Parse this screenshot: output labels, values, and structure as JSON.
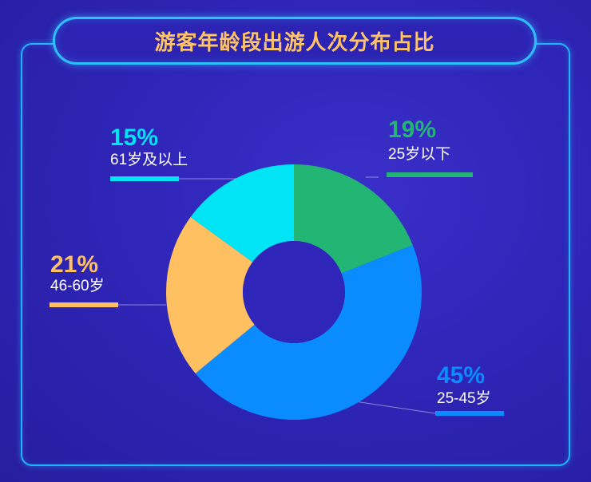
{
  "title": "游客年龄段出游人次分布占比",
  "chart_data": {
    "type": "pie",
    "style": "donut",
    "slices": [
      {
        "label": "25岁以下",
        "value": 19,
        "display": "19%",
        "color": "#22b573"
      },
      {
        "label": "25-45岁",
        "value": 45,
        "display": "45%",
        "color": "#0a8cff"
      },
      {
        "label": "46-60岁",
        "value": 21,
        "display": "21%",
        "color": "#ffc062"
      },
      {
        "label": "61岁及以上",
        "value": 15,
        "display": "15%",
        "color": "#00e4f6"
      }
    ]
  }
}
